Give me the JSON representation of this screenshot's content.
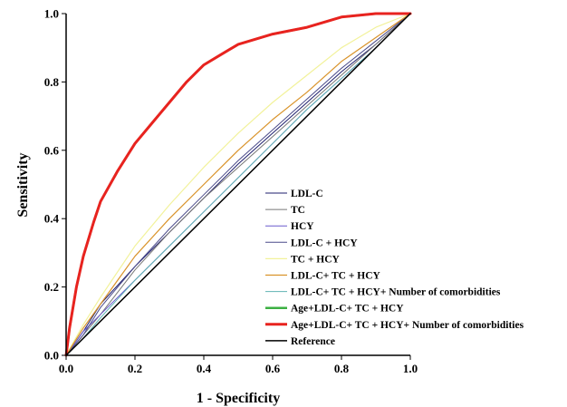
{
  "chart_data": {
    "type": "line",
    "xlabel": "1 - Specificity",
    "ylabel": "Sensitivity",
    "xlim": [
      0,
      1
    ],
    "ylim": [
      0,
      1
    ],
    "x_ticks": [
      "0.0",
      "0.2",
      "0.4",
      "0.6",
      "0.8",
      "1.0"
    ],
    "y_ticks": [
      "0.0",
      "0.2",
      "0.4",
      "0.6",
      "0.8",
      "1.0"
    ],
    "grid": false,
    "legend_position": "right-center",
    "series": [
      {
        "name": "LDL-C",
        "color": "#1f1f6e",
        "width": 1,
        "points": [
          [
            0,
            0
          ],
          [
            0.05,
            0.07
          ],
          [
            0.1,
            0.15
          ],
          [
            0.2,
            0.26
          ],
          [
            0.3,
            0.36
          ],
          [
            0.4,
            0.46
          ],
          [
            0.5,
            0.56
          ],
          [
            0.6,
            0.65
          ],
          [
            0.7,
            0.74
          ],
          [
            0.8,
            0.83
          ],
          [
            0.9,
            0.91
          ],
          [
            1,
            1
          ]
        ]
      },
      {
        "name": "TC",
        "color": "#777777",
        "width": 1,
        "points": [
          [
            0,
            0
          ],
          [
            0.05,
            0.06
          ],
          [
            0.1,
            0.12
          ],
          [
            0.2,
            0.25
          ],
          [
            0.3,
            0.36
          ],
          [
            0.4,
            0.46
          ],
          [
            0.5,
            0.55
          ],
          [
            0.6,
            0.64
          ],
          [
            0.7,
            0.73
          ],
          [
            0.8,
            0.82
          ],
          [
            0.9,
            0.91
          ],
          [
            1,
            1
          ]
        ]
      },
      {
        "name": "HCY",
        "color": "#6a5acd",
        "width": 1,
        "points": [
          [
            0,
            0
          ],
          [
            0.05,
            0.07
          ],
          [
            0.1,
            0.12
          ],
          [
            0.2,
            0.22
          ],
          [
            0.3,
            0.32
          ],
          [
            0.4,
            0.42
          ],
          [
            0.5,
            0.52
          ],
          [
            0.6,
            0.62
          ],
          [
            0.7,
            0.72
          ],
          [
            0.8,
            0.81
          ],
          [
            0.9,
            0.9
          ],
          [
            1,
            1
          ]
        ]
      },
      {
        "name": "LDL-C + HCY",
        "color": "#4b4b8a",
        "width": 1,
        "points": [
          [
            0,
            0
          ],
          [
            0.05,
            0.06
          ],
          [
            0.1,
            0.14
          ],
          [
            0.2,
            0.26
          ],
          [
            0.3,
            0.37
          ],
          [
            0.4,
            0.47
          ],
          [
            0.5,
            0.57
          ],
          [
            0.6,
            0.66
          ],
          [
            0.7,
            0.75
          ],
          [
            0.8,
            0.84
          ],
          [
            0.9,
            0.92
          ],
          [
            1,
            1
          ]
        ]
      },
      {
        "name": "TC + HCY",
        "color": "#f2f29a",
        "width": 1.2,
        "points": [
          [
            0,
            0
          ],
          [
            0.05,
            0.09
          ],
          [
            0.1,
            0.17
          ],
          [
            0.2,
            0.32
          ],
          [
            0.3,
            0.44
          ],
          [
            0.4,
            0.55
          ],
          [
            0.5,
            0.65
          ],
          [
            0.6,
            0.74
          ],
          [
            0.7,
            0.82
          ],
          [
            0.8,
            0.9
          ],
          [
            0.9,
            0.96
          ],
          [
            1,
            1
          ]
        ]
      },
      {
        "name": "LDL-C+ TC + HCY",
        "color": "#d9932a",
        "width": 1.2,
        "points": [
          [
            0,
            0
          ],
          [
            0.05,
            0.08
          ],
          [
            0.1,
            0.15
          ],
          [
            0.2,
            0.29
          ],
          [
            0.3,
            0.4
          ],
          [
            0.4,
            0.5
          ],
          [
            0.5,
            0.6
          ],
          [
            0.6,
            0.69
          ],
          [
            0.7,
            0.77
          ],
          [
            0.8,
            0.86
          ],
          [
            0.9,
            0.93
          ],
          [
            1,
            1
          ]
        ]
      },
      {
        "name": "LDL-C+ TC + HCY+ Number of comorbidities",
        "color": "#5fb3b3",
        "width": 1,
        "points": [
          [
            0,
            0
          ],
          [
            0.05,
            0.05
          ],
          [
            0.1,
            0.11
          ],
          [
            0.2,
            0.22
          ],
          [
            0.3,
            0.32
          ],
          [
            0.4,
            0.42
          ],
          [
            0.5,
            0.52
          ],
          [
            0.6,
            0.62
          ],
          [
            0.7,
            0.72
          ],
          [
            0.8,
            0.81
          ],
          [
            0.9,
            0.9
          ],
          [
            1,
            1
          ]
        ]
      },
      {
        "name": "Age+LDL-C+ TC + HCY",
        "color": "#3cb043",
        "width": 2.5,
        "points": [
          [
            0,
            0
          ],
          [
            0.01,
            0.08
          ],
          [
            0.03,
            0.2
          ],
          [
            0.05,
            0.29
          ],
          [
            0.08,
            0.39
          ],
          [
            0.1,
            0.45
          ],
          [
            0.15,
            0.54
          ],
          [
            0.2,
            0.62
          ],
          [
            0.25,
            0.68
          ],
          [
            0.3,
            0.74
          ],
          [
            0.35,
            0.8
          ],
          [
            0.4,
            0.85
          ],
          [
            0.45,
            0.88
          ],
          [
            0.5,
            0.91
          ],
          [
            0.6,
            0.94
          ],
          [
            0.7,
            0.96
          ],
          [
            0.8,
            0.99
          ],
          [
            0.9,
            1
          ],
          [
            1,
            1
          ]
        ]
      },
      {
        "name": "Age+LDL-C+ TC + HCY+ Number of comorbidities",
        "color": "#e8231f",
        "width": 3,
        "points": [
          [
            0,
            0
          ],
          [
            0.01,
            0.08
          ],
          [
            0.03,
            0.2
          ],
          [
            0.05,
            0.29
          ],
          [
            0.08,
            0.39
          ],
          [
            0.1,
            0.45
          ],
          [
            0.15,
            0.54
          ],
          [
            0.2,
            0.62
          ],
          [
            0.25,
            0.68
          ],
          [
            0.3,
            0.74
          ],
          [
            0.35,
            0.8
          ],
          [
            0.4,
            0.85
          ],
          [
            0.45,
            0.88
          ],
          [
            0.5,
            0.91
          ],
          [
            0.6,
            0.94
          ],
          [
            0.7,
            0.96
          ],
          [
            0.8,
            0.99
          ],
          [
            0.9,
            1
          ],
          [
            1,
            1
          ]
        ]
      },
      {
        "name": "Reference",
        "color": "#000000",
        "width": 1.5,
        "points": [
          [
            0,
            0
          ],
          [
            1,
            1
          ]
        ]
      }
    ]
  }
}
